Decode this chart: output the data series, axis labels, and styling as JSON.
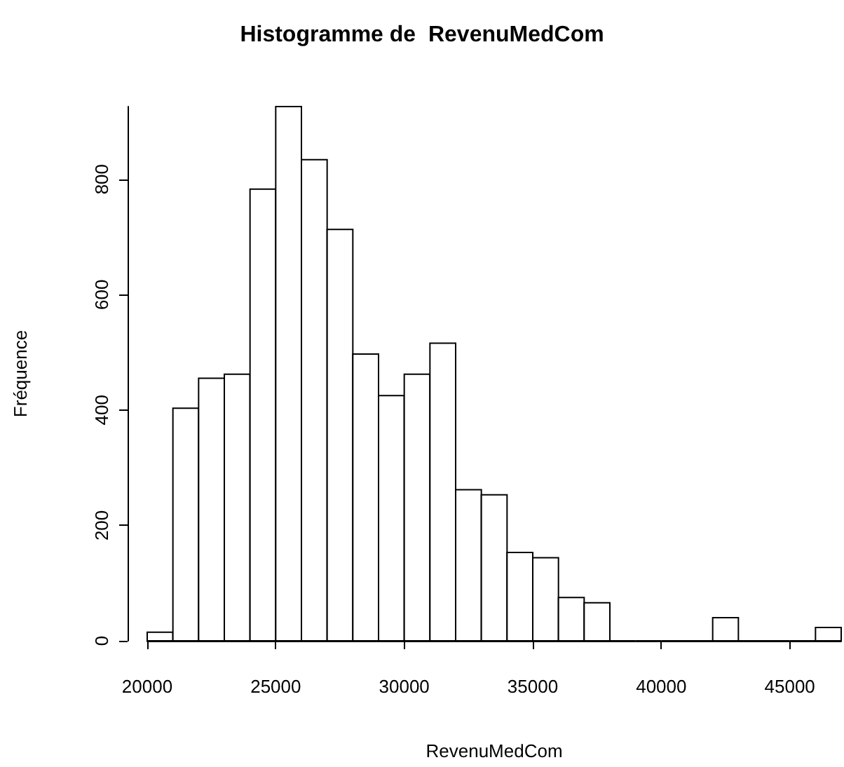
{
  "chart_data": {
    "type": "histogram",
    "title": "Histogramme de  RevenuMedCom",
    "xlabel": "RevenuMedCom",
    "ylabel": "Fréquence",
    "bins": [
      20000,
      21000,
      22000,
      23000,
      24000,
      25000,
      26000,
      27000,
      28000,
      29000,
      30000,
      31000,
      32000,
      33000,
      34000,
      35000,
      36000,
      37000,
      38000,
      39000,
      40000,
      41000,
      42000,
      43000,
      44000,
      45000,
      46000,
      47000
    ],
    "values": [
      15,
      403,
      455,
      462,
      783,
      926,
      834,
      713,
      497,
      425,
      462,
      516,
      262,
      253,
      153,
      144,
      75,
      66,
      0,
      0,
      0,
      0,
      40,
      0,
      0,
      0,
      23
    ],
    "color": "#ffffff",
    "xlim": [
      20000,
      47000
    ],
    "xticks": [
      20000,
      25000,
      30000,
      35000,
      40000,
      45000
    ],
    "ylim": [
      0,
      926
    ],
    "yticks": [
      0,
      200,
      400,
      600,
      800
    ],
    "grid": false
  }
}
